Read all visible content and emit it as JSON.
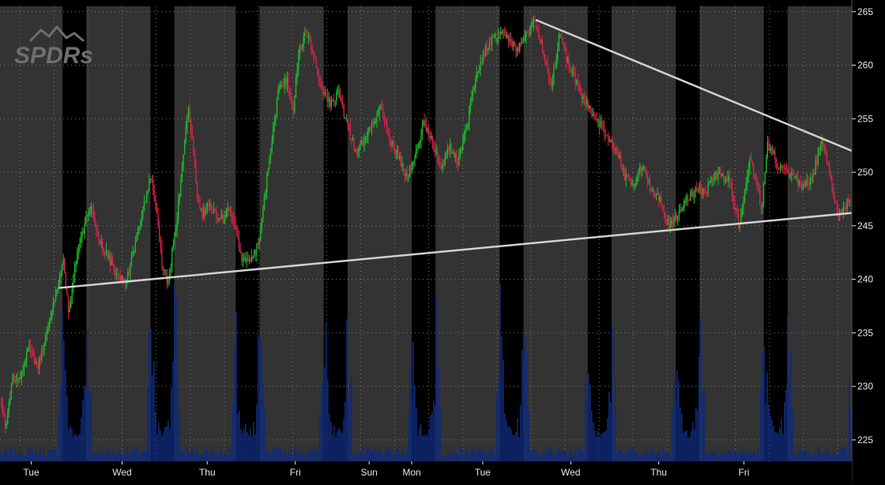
{
  "watermark": {
    "text": "SPDRs"
  },
  "colors": {
    "background": "#000000",
    "session": "#333333",
    "after_hours": "#000000",
    "grid": "#7a7a7a",
    "up_candle": "#1fbf2b",
    "down_candle": "#d8234a",
    "volume": "#0f2a78",
    "trendline": "#d0d0d0",
    "axis_text": "#e6e6e6"
  },
  "chart_data": {
    "type": "candlestick",
    "title": "",
    "xlabel": "",
    "ylabel": "",
    "ylim": [
      223,
      265.5
    ],
    "grid": true,
    "y_ticks": [
      225,
      230,
      235,
      240,
      245,
      250,
      255,
      260,
      265
    ],
    "x_ticks": [
      "Tue",
      "Wed",
      "Thu",
      "Fri",
      "Sun",
      "Mon",
      "Tue",
      "Wed",
      "Thu",
      "Fri"
    ],
    "price_path": [
      [
        0.0,
        228.5
      ],
      [
        0.1,
        226.0
      ],
      [
        0.2,
        231.0
      ],
      [
        0.35,
        230.5
      ],
      [
        0.5,
        234.0
      ],
      [
        0.65,
        231.5
      ],
      [
        0.85,
        236.0
      ],
      [
        1.0,
        239.0
      ],
      [
        1.1,
        242.0
      ],
      [
        1.2,
        237.0
      ],
      [
        1.3,
        241.0
      ],
      [
        1.5,
        245.5
      ],
      [
        1.6,
        246.8
      ],
      [
        1.75,
        243.5
      ],
      [
        1.9,
        242.0
      ],
      [
        2.05,
        240.5
      ],
      [
        2.2,
        239.5
      ],
      [
        2.4,
        244.0
      ],
      [
        2.55,
        247.5
      ],
      [
        2.65,
        249.8
      ],
      [
        2.75,
        246.0
      ],
      [
        2.85,
        241.0
      ],
      [
        2.95,
        239.8
      ],
      [
        3.1,
        245.5
      ],
      [
        3.2,
        250.5
      ],
      [
        3.3,
        256.0
      ],
      [
        3.4,
        252.0
      ],
      [
        3.45,
        248.0
      ],
      [
        3.55,
        246.0
      ],
      [
        3.7,
        247.0
      ],
      [
        3.85,
        245.5
      ],
      [
        4.0,
        246.5
      ],
      [
        4.15,
        244.5
      ],
      [
        4.25,
        242.0
      ],
      [
        4.4,
        241.5
      ],
      [
        4.55,
        243.5
      ],
      [
        4.75,
        252.0
      ],
      [
        4.9,
        258.0
      ],
      [
        5.05,
        258.5
      ],
      [
        5.15,
        255.5
      ],
      [
        5.25,
        261.5
      ],
      [
        5.4,
        263.0
      ],
      [
        5.5,
        261.0
      ],
      [
        5.65,
        258.0
      ],
      [
        5.8,
        256.5
      ],
      [
        5.95,
        257.5
      ],
      [
        6.1,
        254.5
      ],
      [
        6.25,
        252.0
      ],
      [
        6.4,
        253.0
      ],
      [
        6.55,
        254.5
      ],
      [
        6.7,
        256.0
      ],
      [
        6.85,
        253.0
      ],
      [
        7.0,
        251.5
      ],
      [
        7.15,
        249.5
      ],
      [
        7.3,
        251.5
      ],
      [
        7.45,
        254.5
      ],
      [
        7.6,
        253.0
      ],
      [
        7.75,
        250.0
      ],
      [
        7.9,
        252.5
      ],
      [
        8.05,
        251.0
      ],
      [
        8.2,
        254.0
      ],
      [
        8.35,
        258.5
      ],
      [
        8.5,
        261.0
      ],
      [
        8.65,
        262.5
      ],
      [
        8.8,
        263.0
      ],
      [
        8.95,
        262.5
      ],
      [
        9.1,
        261.5
      ],
      [
        9.25,
        263.0
      ],
      [
        9.4,
        264.0
      ],
      [
        9.55,
        261.5
      ],
      [
        9.7,
        258.0
      ],
      [
        9.85,
        263.0
      ],
      [
        10.0,
        260.0
      ],
      [
        10.1,
        259.0
      ],
      [
        10.25,
        257.0
      ],
      [
        10.4,
        255.5
      ],
      [
        10.55,
        254.5
      ],
      [
        10.7,
        253.0
      ],
      [
        10.85,
        252.0
      ],
      [
        11.0,
        249.5
      ],
      [
        11.15,
        249.0
      ],
      [
        11.3,
        250.5
      ],
      [
        11.45,
        248.5
      ],
      [
        11.6,
        247.5
      ],
      [
        11.7,
        245.5
      ],
      [
        11.8,
        245.0
      ],
      [
        11.95,
        246.5
      ],
      [
        12.1,
        247.5
      ],
      [
        12.25,
        248.5
      ],
      [
        12.4,
        248.0
      ],
      [
        12.55,
        249.5
      ],
      [
        12.7,
        250.0
      ],
      [
        12.85,
        249.0
      ],
      [
        13.0,
        245.0
      ],
      [
        13.1,
        248.0
      ],
      [
        13.2,
        251.0
      ],
      [
        13.3,
        249.5
      ],
      [
        13.4,
        246.5
      ],
      [
        13.5,
        252.5
      ],
      [
        13.6,
        252.0
      ],
      [
        13.7,
        250.5
      ],
      [
        13.85,
        250.0
      ],
      [
        14.0,
        249.5
      ],
      [
        14.15,
        248.5
      ],
      [
        14.3,
        249.5
      ],
      [
        14.45,
        253.0
      ],
      [
        14.55,
        251.0
      ],
      [
        14.65,
        248.5
      ],
      [
        14.75,
        246.0
      ],
      [
        14.85,
        246.5
      ],
      [
        15.0,
        248.0
      ]
    ],
    "trendlines": [
      {
        "start": [
          1.05,
          239.2
        ],
        "end": [
          15.0,
          246.2
        ]
      },
      {
        "start": [
          9.45,
          264.2
        ],
        "end": [
          15.0,
          252.0
        ]
      }
    ]
  }
}
